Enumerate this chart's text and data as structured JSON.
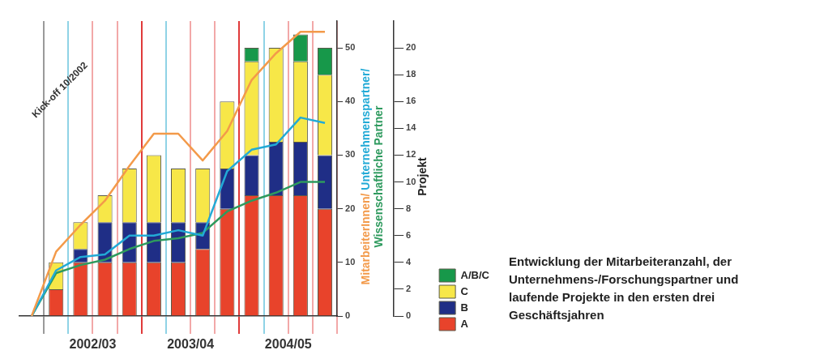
{
  "chart_data": {
    "type": "bar",
    "stacked": true,
    "categories": [
      null,
      null,
      null,
      null,
      null,
      null,
      null,
      null,
      null,
      null,
      null,
      null,
      null
    ],
    "ylim": [
      0,
      55
    ],
    "yticks": [
      0,
      10,
      20,
      30,
      40,
      50
    ],
    "y2lim": [
      0,
      22
    ],
    "y2ticks": [
      0,
      2,
      4,
      6,
      8,
      10,
      12,
      14,
      16,
      18,
      20
    ],
    "y2label": "Projekt",
    "series": [
      {
        "name": "A",
        "color": "#e8432b",
        "axis": "y2",
        "values": [
          0,
          2,
          4,
          4,
          4,
          4,
          4,
          5,
          8,
          9,
          9,
          9,
          8
        ]
      },
      {
        "name": "B",
        "color": "#1f2e86",
        "axis": "y2",
        "values": [
          0,
          0,
          1,
          3,
          3,
          3,
          3,
          2,
          3,
          3,
          4,
          4,
          4
        ]
      },
      {
        "name": "C",
        "color": "#f7e748",
        "axis": "y2",
        "values": [
          0,
          2,
          2,
          2,
          4,
          5,
          4,
          4,
          5,
          7,
          7,
          6,
          6
        ]
      },
      {
        "name": "A/B/C",
        "color": "#17984a",
        "axis": "y2",
        "values": [
          0,
          0,
          0,
          0,
          0,
          0,
          0,
          0,
          0,
          1,
          0,
          2,
          2
        ]
      },
      {
        "name": "MitarbeiterInnen/",
        "type": "line",
        "color": "#f39a4a",
        "values": [
          0,
          12,
          17,
          21.5,
          28,
          34,
          34,
          29,
          34.5,
          44,
          49,
          53,
          53
        ]
      },
      {
        "name": "Unternehmenspartner/",
        "type": "line",
        "color": "#22aad6",
        "values": [
          0,
          8.5,
          11,
          11.5,
          15,
          15,
          16,
          15,
          27,
          31,
          32,
          37,
          36
        ]
      },
      {
        "name": "Wissenschaftliche Partner",
        "type": "line",
        "color": "#2e9a5e",
        "values": [
          0,
          8,
          9.5,
          10.5,
          12.5,
          14,
          14.5,
          15.5,
          19.5,
          21.5,
          23,
          25,
          25
        ]
      }
    ],
    "marker": "none",
    "line_style": "solid",
    "legend": "right",
    "grid": "x",
    "tick_labels": "y",
    "annotations": [
      "Kick-off 10/2002",
      "2002/03",
      "2003/04",
      "2004/05",
      "Entwicklung der Mitarbeiteranzahl, der Unternehmens-/Forschungspartner und laufende Projekte in den ersten drei Geschäftsjahren"
    ]
  }
}
